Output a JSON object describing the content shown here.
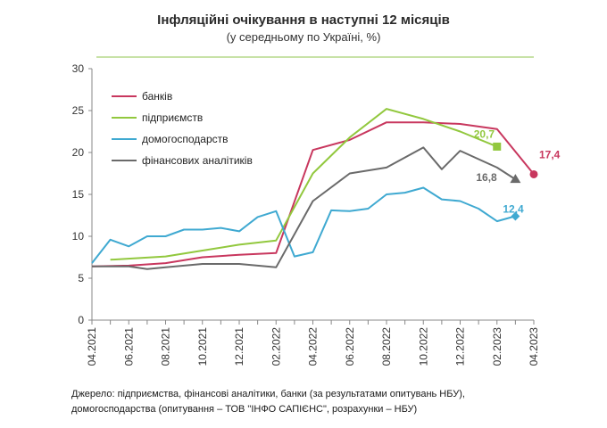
{
  "chart_data": {
    "type": "line",
    "title": "Інфляційні очікування в наступні 12 місяців",
    "subtitle": "(у середньому по Україні, %)",
    "ylim": [
      0,
      30
    ],
    "yticks": [
      0,
      5,
      10,
      15,
      20,
      25,
      30
    ],
    "x": [
      "2021-04",
      "2021-05",
      "2021-06",
      "2021-07",
      "2021-08",
      "2021-09",
      "2021-10",
      "2021-11",
      "2021-12",
      "2022-01",
      "2022-02",
      "2022-03",
      "2022-04",
      "2022-05",
      "2022-06",
      "2022-07",
      "2022-08",
      "2022-09",
      "2022-10",
      "2022-11",
      "2022-12",
      "2023-01",
      "2023-02",
      "2023-03",
      "2023-04"
    ],
    "xtick_labels": [
      "04.2021",
      "06.2021",
      "08.2021",
      "10.2021",
      "12.2021",
      "02.2022",
      "04.2022",
      "06.2022",
      "08.2022",
      "10.2022",
      "12.2022",
      "02.2023",
      "04.2023"
    ],
    "grid": false,
    "legend_position": "top-left",
    "series": [
      {
        "name": "банків",
        "color": "#c8375e",
        "values": [
          6.4,
          null,
          6.5,
          null,
          6.8,
          null,
          7.5,
          null,
          7.8,
          null,
          8.0,
          null,
          20.3,
          null,
          21.5,
          null,
          23.6,
          null,
          23.6,
          null,
          23.4,
          null,
          22.8,
          null,
          17.4
        ],
        "end_label": "17,4",
        "marker": "circle"
      },
      {
        "name": "підприємств",
        "color": "#92c83e",
        "values": [
          null,
          7.2,
          null,
          null,
          7.6,
          null,
          8.3,
          null,
          9.0,
          null,
          9.5,
          null,
          17.5,
          null,
          21.8,
          null,
          25.2,
          null,
          24.0,
          null,
          22.5,
          null,
          20.7,
          null,
          null
        ],
        "end_label": "20,7",
        "marker": "square"
      },
      {
        "name": "домогосподарств",
        "color": "#3fa9d1",
        "values": [
          6.8,
          9.6,
          8.8,
          10.0,
          10.0,
          10.8,
          10.8,
          11.0,
          10.6,
          12.3,
          13.0,
          7.6,
          8.1,
          13.1,
          13.0,
          13.3,
          15.0,
          15.2,
          15.8,
          14.4,
          14.2,
          13.3,
          11.8,
          12.4,
          null
        ],
        "end_label": "12,4",
        "marker": "diamond"
      },
      {
        "name": "фінансових  аналітиків",
        "color": "#6a6a6a",
        "values": [
          6.4,
          null,
          6.4,
          6.1,
          6.3,
          null,
          6.7,
          null,
          6.7,
          null,
          6.3,
          null,
          14.2,
          null,
          17.5,
          null,
          18.2,
          null,
          20.6,
          18.0,
          20.2,
          null,
          18.2,
          16.8,
          null
        ],
        "end_label": "16,8",
        "marker": "triangle"
      }
    ]
  },
  "footnote": {
    "line1": "Джерело: підприємства, фінансові аналітики, банки (за результатами опитувань НБУ),",
    "line2": "домогосподарства (опитування – ТОВ \"ІНФО САПІЄНС\", розрахунки – НБУ)"
  }
}
